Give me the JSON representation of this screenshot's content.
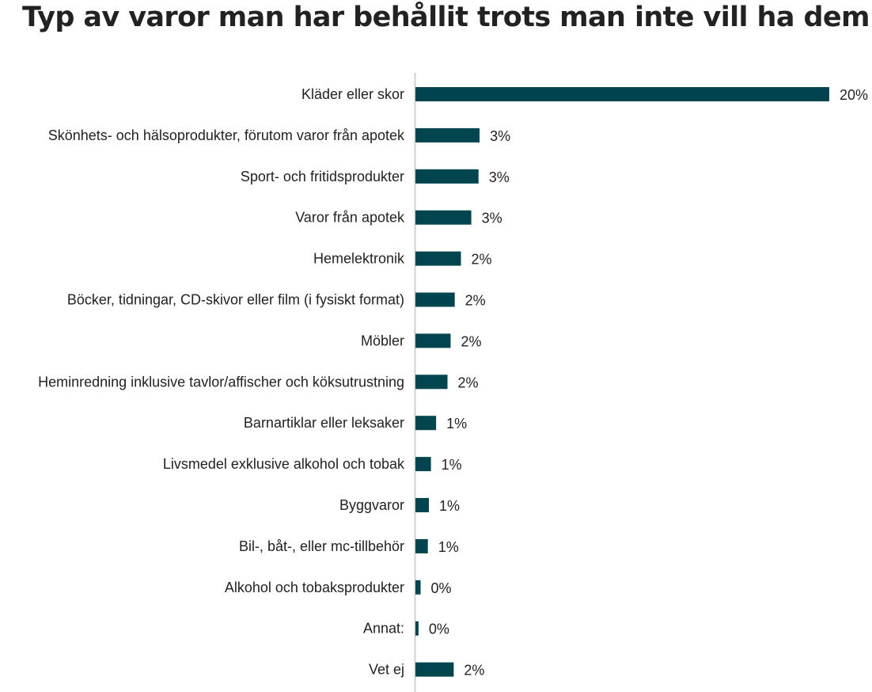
{
  "chart_data": {
    "type": "bar",
    "orientation": "horizontal",
    "title": "Typ av varor man har behållit trots man inte vill ha dem",
    "categories": [
      "Kläder eller skor",
      "Skönhets- och hälsoprodukter, förutom varor från apotek",
      "Sport- och fritidsprodukter",
      "Varor från apotek",
      "Hemelektronik",
      "Böcker, tidningar, CD-skivor eller film (i fysiskt format)",
      "Möbler",
      "Heminredning inklusive tavlor/affischer och köksutrustning",
      "Barnartiklar eller leksaker",
      "Livsmedel exklusive alkohol och tobak",
      "Byggvaror",
      "Bil-, båt-, eller mc-tillbehör",
      "Alkohol och tobaksprodukter",
      "Annat:",
      "Vet ej"
    ],
    "values": [
      20.0,
      3.1,
      3.05,
      2.7,
      2.2,
      1.9,
      1.7,
      1.55,
      1.0,
      0.75,
      0.65,
      0.6,
      0.25,
      0.15,
      1.85
    ],
    "value_labels": [
      "20%",
      "3%",
      "3%",
      "3%",
      "2%",
      "2%",
      "2%",
      "2%",
      "1%",
      "1%",
      "1%",
      "1%",
      "0%",
      "0%",
      "2%"
    ],
    "unit": "%",
    "xlim": [
      0,
      20
    ],
    "bar_color": "#03454f",
    "axis_color": "#d0d0d0",
    "grid": false,
    "legend": "none"
  }
}
